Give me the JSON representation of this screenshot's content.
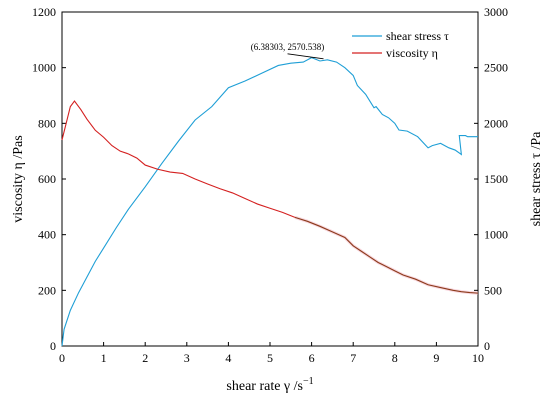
{
  "chart_data": {
    "type": "line",
    "xlabel": "shear rate γ  /s",
    "xlabel_exponent": "−1",
    "ylabel_left": "viscosity η  /Pas",
    "ylabel_right": "shear stress τ  /Pa",
    "xlim": [
      0,
      10
    ],
    "ylim_left": [
      0,
      1200
    ],
    "ylim_right": [
      0,
      3000
    ],
    "x_ticks": [
      "0",
      "1",
      "2",
      "3",
      "4",
      "5",
      "6",
      "7",
      "8",
      "9",
      "10"
    ],
    "y_left_ticks": [
      "0",
      "200",
      "400",
      "600",
      "800",
      "1000",
      "1200"
    ],
    "y_right_ticks": [
      "0",
      "500",
      "1000",
      "1500",
      "2000",
      "2500",
      "3000"
    ],
    "grid": false,
    "legend_position": "top-right",
    "series": [
      {
        "name": "shear stress τ",
        "axis": "right",
        "color": "#1f9fd6",
        "x": [
          0.0,
          0.05,
          0.2,
          0.4,
          0.6,
          0.8,
          1.0,
          1.3,
          1.6,
          2.0,
          2.4,
          2.8,
          3.2,
          3.6,
          4.0,
          4.4,
          4.8,
          5.2,
          5.5,
          5.8,
          6.0,
          6.2,
          6.38,
          6.6,
          6.8,
          7.0,
          7.1,
          7.3,
          7.45,
          7.5,
          7.55,
          7.7,
          7.85,
          8.0,
          8.1,
          8.3,
          8.55,
          8.75,
          8.8,
          8.9,
          9.1,
          9.3,
          9.45,
          9.6,
          9.55,
          9.7,
          9.75,
          10.0
        ],
        "values": [
          0,
          150,
          320,
          480,
          620,
          760,
          880,
          1060,
          1230,
          1430,
          1640,
          1840,
          2030,
          2150,
          2320,
          2380,
          2450,
          2520,
          2540,
          2550,
          2590,
          2560,
          2570.538,
          2550,
          2500,
          2430,
          2340,
          2260,
          2170,
          2140,
          2150,
          2080,
          2050,
          2000,
          1940,
          1930,
          1880,
          1800,
          1780,
          1800,
          1820,
          1780,
          1760,
          1720,
          1890,
          1890,
          1880,
          1880
        ]
      },
      {
        "name": "viscosity η",
        "axis": "left",
        "color": "#d42020",
        "tail_color": "#8b3a1a",
        "x": [
          0.0,
          0.1,
          0.2,
          0.3,
          0.45,
          0.6,
          0.8,
          1.0,
          1.2,
          1.4,
          1.6,
          1.8,
          2.0,
          2.3,
          2.6,
          2.9,
          3.2,
          3.5,
          3.8,
          4.1,
          4.4,
          4.7,
          5.0,
          5.3,
          5.6,
          5.9,
          6.2,
          6.5,
          6.8,
          7.0,
          7.2,
          7.4,
          7.6,
          7.8,
          8.0,
          8.2,
          8.5,
          8.8,
          9.1,
          9.4,
          9.6,
          9.8,
          10.0
        ],
        "values": [
          740,
          800,
          860,
          880,
          850,
          815,
          775,
          750,
          720,
          700,
          690,
          675,
          650,
          635,
          625,
          620,
          600,
          582,
          565,
          550,
          530,
          510,
          495,
          480,
          462,
          448,
          430,
          410,
          390,
          360,
          340,
          320,
          300,
          285,
          270,
          255,
          240,
          220,
          210,
          200,
          195,
          192,
          190
        ]
      }
    ],
    "annotation": {
      "label": "(6.38303, 2570.538)",
      "x": 6.38303,
      "y": 2570.538,
      "axis": "right"
    }
  }
}
